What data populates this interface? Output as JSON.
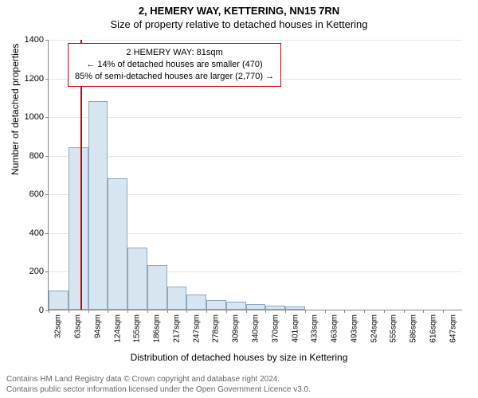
{
  "titles": {
    "main": "2, HEMERY WAY, KETTERING, NN15 7RN",
    "sub": "Size of property relative to detached houses in Kettering"
  },
  "axes": {
    "ylabel": "Number of detached properties",
    "xlabel": "Distribution of detached houses by size in Kettering",
    "ymax": 1400,
    "yticks": [
      0,
      200,
      400,
      600,
      800,
      1000,
      1200,
      1400
    ],
    "xticks_labels": [
      "32sqm",
      "63sqm",
      "94sqm",
      "124sqm",
      "155sqm",
      "186sqm",
      "217sqm",
      "247sqm",
      "278sqm",
      "309sqm",
      "340sqm",
      "370sqm",
      "401sqm",
      "433sqm",
      "463sqm",
      "493sqm",
      "524sqm",
      "555sqm",
      "586sqm",
      "616sqm",
      "647sqm"
    ]
  },
  "chart": {
    "type": "histogram",
    "bar_fill": "#d7e5f0",
    "bar_stroke": "#8aa8c0",
    "grid_color": "#e6e6e6",
    "background_color": "#ffffff",
    "values": [
      100,
      840,
      1080,
      680,
      320,
      230,
      120,
      80,
      50,
      40,
      30,
      20,
      15,
      0,
      0,
      0,
      0,
      0,
      0,
      0,
      0
    ],
    "marker_bin_index": 1,
    "marker_position_in_bin": 0.6,
    "marker_color": "#cc0000"
  },
  "annotation": {
    "line1": "2 HEMERY WAY: 81sqm",
    "line2": "← 14% of detached houses are smaller (470)",
    "line3": "85% of semi-detached houses are larger (2,770) →",
    "border_color": "#cc0000"
  },
  "footer": {
    "line1": "Contains HM Land Registry data © Crown copyright and database right 2024.",
    "line2": "Contains public sector information licensed under the Open Government Licence v3.0."
  }
}
